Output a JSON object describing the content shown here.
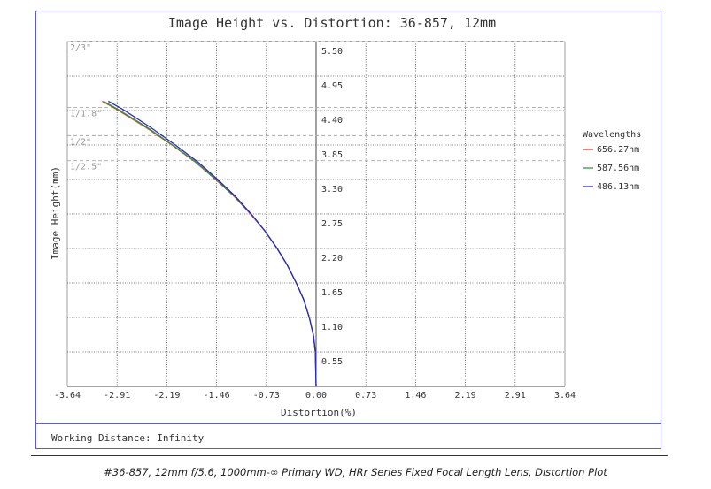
{
  "chart_data": {
    "type": "line",
    "title": "Image Height vs. Distortion: 36-857, 12mm",
    "xlabel": "Distortion(%)",
    "ylabel": "Image Height(mm)",
    "xlim": [
      -3.64,
      3.64
    ],
    "ylim": [
      0,
      5.5
    ],
    "x_ticks": [
      "-3.64",
      "-2.91",
      "-2.19",
      "-1.46",
      "-0.73",
      "0.00",
      "0.73",
      "1.46",
      "2.19",
      "2.91",
      "3.64"
    ],
    "y_ticks": [
      "0.55",
      "1.10",
      "1.65",
      "2.20",
      "2.75",
      "3.30",
      "3.85",
      "4.40",
      "4.95",
      "5.50"
    ],
    "grid": true,
    "legend_title": "Wavelengths",
    "legend_position": "right",
    "series": [
      {
        "name": "656.27nm",
        "color": "#e8392b",
        "x": [
          0,
          -0.01,
          -0.04,
          -0.1,
          -0.18,
          -0.29,
          -0.42,
          -0.57,
          -0.75,
          -0.96,
          -1.2,
          -1.47,
          -1.77,
          -2.11,
          -2.49,
          -2.92,
          -3.13
        ],
        "y": [
          0,
          0.55,
          0.82,
          1.1,
          1.38,
          1.65,
          1.93,
          2.2,
          2.48,
          2.75,
          3.03,
          3.3,
          3.58,
          3.85,
          4.13,
          4.42,
          4.55
        ]
      },
      {
        "name": "587.56nm",
        "color": "#2e9a3a",
        "x": [
          0,
          -0.01,
          -0.04,
          -0.1,
          -0.18,
          -0.29,
          -0.42,
          -0.57,
          -0.75,
          -0.95,
          -1.19,
          -1.46,
          -1.76,
          -2.1,
          -2.47,
          -2.9,
          -3.11
        ],
        "y": [
          0,
          0.55,
          0.82,
          1.1,
          1.38,
          1.65,
          1.93,
          2.2,
          2.48,
          2.75,
          3.03,
          3.3,
          3.58,
          3.85,
          4.13,
          4.42,
          4.55
        ]
      },
      {
        "name": "486.13nm",
        "color": "#2828c8",
        "x": [
          0,
          -0.01,
          -0.04,
          -0.1,
          -0.18,
          -0.29,
          -0.42,
          -0.57,
          -0.75,
          -0.95,
          -1.18,
          -1.44,
          -1.73,
          -2.06,
          -2.42,
          -2.83,
          -3.04
        ],
        "y": [
          0,
          0.55,
          0.82,
          1.1,
          1.38,
          1.65,
          1.93,
          2.2,
          2.48,
          2.75,
          3.03,
          3.3,
          3.58,
          3.85,
          4.13,
          4.42,
          4.55
        ]
      }
    ],
    "sensor_lines": [
      {
        "label": "2/3\"",
        "y": 5.5
      },
      {
        "label": "1/1.8\"",
        "y": 4.45
      },
      {
        "label": "1/2\"",
        "y": 4.0
      },
      {
        "label": "1/2.5\"",
        "y": 3.6
      }
    ]
  },
  "footer": {
    "working_distance": "Working Distance: Infinity"
  },
  "caption": "#36-857, 12mm f/5.6, 1000mm-∞ Primary WD, HRr Series Fixed Focal Length Lens, Distortion Plot"
}
